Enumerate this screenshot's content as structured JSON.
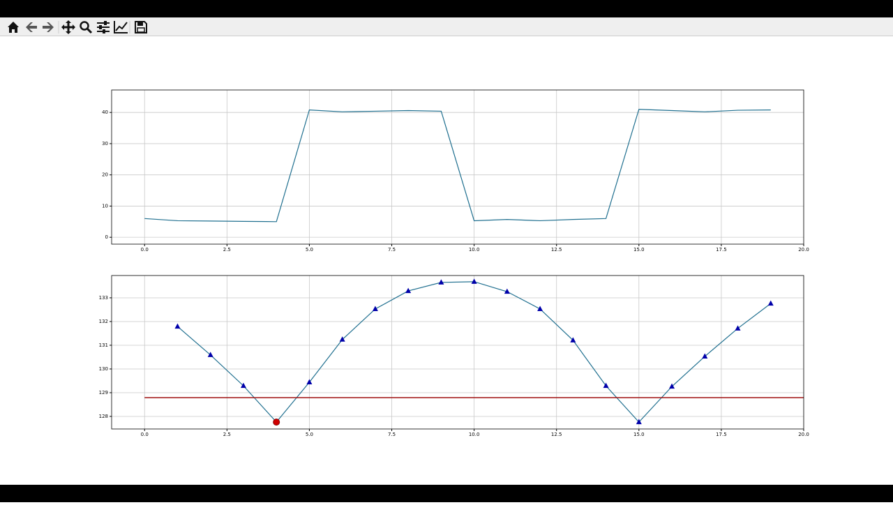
{
  "chart_data": [
    {
      "type": "line",
      "grid": true,
      "xlim": [
        -1,
        20
      ],
      "ylim": [
        -2.2,
        47.2
      ],
      "xticks": [
        {
          "value": 0,
          "label": "0.0"
        },
        {
          "value": 2.5,
          "label": "2.5"
        },
        {
          "value": 5,
          "label": "5.0"
        },
        {
          "value": 7.5,
          "label": "7.5"
        },
        {
          "value": 10,
          "label": "10.0"
        },
        {
          "value": 12.5,
          "label": "12.5"
        },
        {
          "value": 15,
          "label": "15.0"
        },
        {
          "value": 17.5,
          "label": "17.5"
        },
        {
          "value": 20,
          "label": "20.0"
        }
      ],
      "yticks": [
        0,
        10,
        20,
        30,
        40
      ],
      "series": [
        {
          "color": "#1f6f8f",
          "x": [
            0,
            1,
            2,
            3,
            4,
            5,
            6,
            7,
            8,
            9,
            10,
            11,
            12,
            13,
            14,
            15,
            16,
            17,
            18,
            19
          ],
          "values": [
            6.0,
            5.3,
            5.2,
            5.1,
            5.0,
            40.8,
            40.2,
            40.4,
            40.6,
            40.4,
            5.3,
            5.7,
            5.3,
            5.7,
            6.0,
            41.0,
            40.6,
            40.2,
            40.7,
            40.8
          ]
        }
      ]
    },
    {
      "type": "line",
      "grid": true,
      "xlim": [
        -1,
        20
      ],
      "ylim": [
        127.47,
        133.94
      ],
      "xticks": [
        {
          "value": 0,
          "label": "0.0"
        },
        {
          "value": 2.5,
          "label": "2.5"
        },
        {
          "value": 5,
          "label": "5.0"
        },
        {
          "value": 7.5,
          "label": "7.5"
        },
        {
          "value": 10,
          "label": "10.0"
        },
        {
          "value": 12.5,
          "label": "12.5"
        },
        {
          "value": 15,
          "label": "15.0"
        },
        {
          "value": 17.5,
          "label": "17.5"
        },
        {
          "value": 20,
          "label": "20.0"
        }
      ],
      "yticks": [
        128,
        129,
        130,
        131,
        132,
        133
      ],
      "series": [
        {
          "color": "#1f6f8f",
          "marker": "^",
          "marker_color": "#0000aa",
          "x": [
            1,
            2,
            3,
            4,
            5,
            6,
            7,
            8,
            9,
            10,
            11,
            12,
            13,
            14,
            15,
            16,
            17,
            18,
            19
          ],
          "values": [
            131.79,
            130.59,
            129.29,
            127.76,
            129.44,
            131.24,
            132.53,
            133.29,
            133.65,
            133.68,
            133.26,
            132.53,
            131.21,
            129.29,
            127.76,
            129.26,
            130.53,
            131.71,
            132.76
          ]
        }
      ],
      "hline": {
        "value": 128.79,
        "x": [
          0,
          20
        ],
        "color": "#a01010"
      },
      "highlight": {
        "x": 4,
        "y": 127.76,
        "color": "#d00000"
      }
    }
  ]
}
